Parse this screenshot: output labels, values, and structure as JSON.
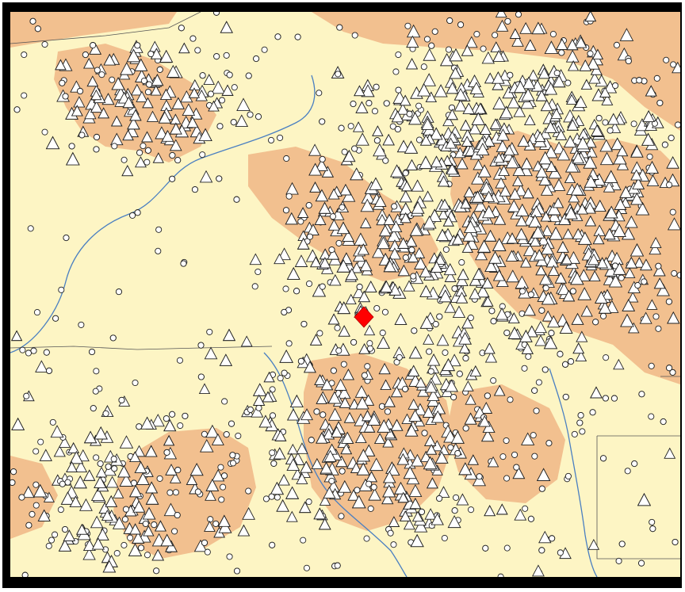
{
  "map": {
    "colors": {
      "background": "#fdf5c4",
      "shaded_area": "#f2c08f",
      "river": "#4a7fc1",
      "boundary": "#555555",
      "frame": "#000000",
      "marker": "#ff0000"
    },
    "symbols": [
      "triangle-marker",
      "circle-marker"
    ],
    "highlight": {
      "shape": "diamond",
      "color": "#ff0000"
    }
  }
}
